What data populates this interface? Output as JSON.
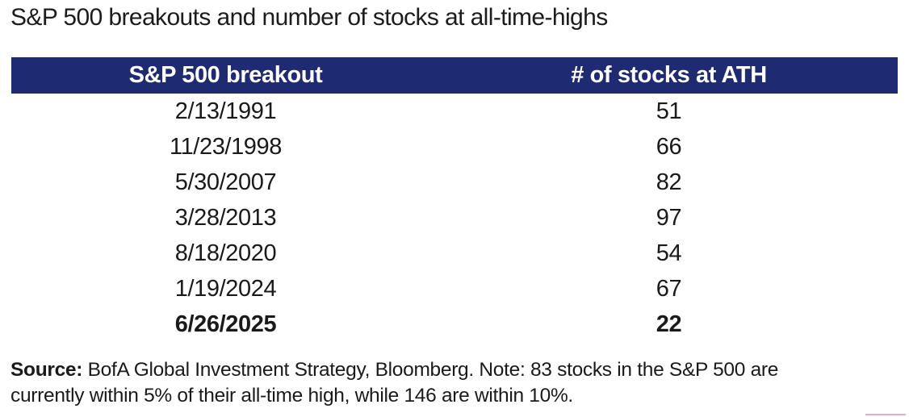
{
  "page": {
    "title": "S&P 500 breakouts and number of stocks at all-time-highs"
  },
  "table": {
    "columns": [
      "S&P 500 breakout",
      "# of stocks at ATH"
    ],
    "rows": [
      {
        "date": "2/13/1991",
        "ath": "51",
        "bold": false
      },
      {
        "date": "11/23/1998",
        "ath": "66",
        "bold": false
      },
      {
        "date": "5/30/2007",
        "ath": "82",
        "bold": false
      },
      {
        "date": "3/28/2013",
        "ath": "97",
        "bold": false
      },
      {
        "date": "8/18/2020",
        "ath": "54",
        "bold": false
      },
      {
        "date": "1/19/2024",
        "ath": "67",
        "bold": false
      },
      {
        "date": "6/26/2025",
        "ath": "22",
        "bold": true
      }
    ]
  },
  "footer": {
    "source_label": "Source:",
    "source_text": " BofA Global Investment Strategy, Bloomberg. Note: 83 stocks in the S&P 500 are currently within 5% of their all-time high, while 146 are within 10%."
  },
  "colors": {
    "header_bg": "#1e2b72",
    "header_fg": "#ffffff",
    "text": "#1a1a1a",
    "pink_artifact": "#edaacd"
  },
  "chart_data": {
    "type": "table",
    "title": "S&P 500 breakouts and number of stocks at all-time-highs",
    "columns": [
      "S&P 500 breakout",
      "# of stocks at ATH"
    ],
    "rows": [
      [
        "2/13/1991",
        51
      ],
      [
        "11/23/1998",
        66
      ],
      [
        "5/30/2007",
        82
      ],
      [
        "3/28/2013",
        97
      ],
      [
        "8/18/2020",
        54
      ],
      [
        "1/19/2024",
        67
      ],
      [
        "6/26/2025",
        22
      ]
    ],
    "note": "Source: BofA Global Investment Strategy, Bloomberg. Note: 83 stocks in the S&P 500 are currently within 5% of their all-time high, while 146 are within 10%.",
    "legend_position": "none",
    "grid": false
  }
}
